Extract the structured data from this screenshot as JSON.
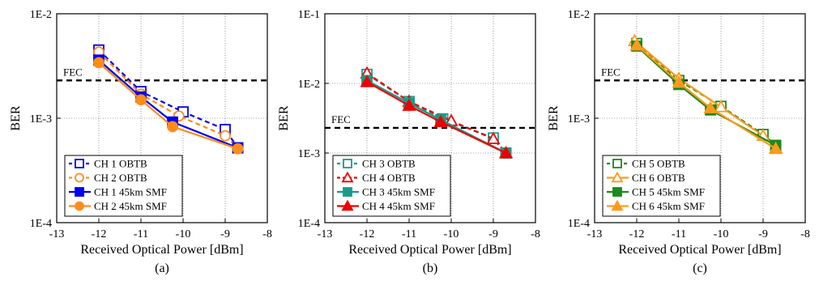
{
  "chart_data": [
    {
      "type": "line",
      "panel_label": "(a)",
      "xlabel": "Received Optical Power [dBm]",
      "ylabel": "BER",
      "xlim": [
        -13,
        -8
      ],
      "ylim": [
        0.0001,
        0.01
      ],
      "yscale": "log",
      "x_ticks": [
        "-13",
        "-12",
        "-11",
        "-10",
        "-9",
        "-8"
      ],
      "y_ticks": [
        "1E-2",
        "1E-3",
        "1E-4"
      ],
      "grid": true,
      "legend_position": "bottom-left",
      "fec": {
        "label": "FEC",
        "value": 0.0023
      },
      "series": [
        {
          "name": "CH 1 OBTB",
          "color": "#0000ee",
          "marker": "square",
          "filled": false,
          "dashed": true,
          "x": [
            -12,
            -11,
            -10,
            -9,
            -8.7
          ],
          "y": [
            0.0045,
            0.0018,
            0.00115,
            0.00078,
            0.00052
          ]
        },
        {
          "name": "CH 2 OBTB",
          "color": "#ff8c1a",
          "marker": "circle",
          "filled": false,
          "dashed": true,
          "x": [
            -12,
            -11,
            -10.1,
            -9,
            -8.7
          ],
          "y": [
            0.0043,
            0.0017,
            0.00105,
            0.00068,
            0.00052
          ]
        },
        {
          "name": "CH 1 45km SMF",
          "color": "#0000ee",
          "marker": "square",
          "filled": true,
          "dashed": false,
          "x": [
            -12,
            -11,
            -10.25,
            -8.7
          ],
          "y": [
            0.0036,
            0.0016,
            0.00092,
            0.00052
          ]
        },
        {
          "name": "CH 2 45km SMF",
          "color": "#ff8c1a",
          "marker": "circle",
          "filled": true,
          "dashed": false,
          "x": [
            -12,
            -11,
            -10.25,
            -8.7
          ],
          "y": [
            0.0034,
            0.0015,
            0.00083,
            0.00051
          ]
        }
      ]
    },
    {
      "type": "line",
      "panel_label": "(b)",
      "xlabel": "Received Optical Power [dBm]",
      "ylabel": "BER",
      "xlim": [
        -13,
        -8
      ],
      "ylim": [
        0.0001,
        0.1
      ],
      "yscale": "log",
      "x_ticks": [
        "-13",
        "-12",
        "-11",
        "-10",
        "-9",
        "-8"
      ],
      "y_ticks": [
        "1E-1",
        "1E-2",
        "1E-3",
        "1E-4"
      ],
      "grid": true,
      "legend_position": "bottom-left",
      "fec": {
        "label": "FEC",
        "value": 0.0023
      },
      "series": [
        {
          "name": "CH 3 OBTB",
          "color": "#1a9a8a",
          "marker": "square",
          "filled": false,
          "dashed": true,
          "x": [
            -12,
            -11,
            -10.2,
            -9,
            -8.7
          ],
          "y": [
            0.0135,
            0.0055,
            0.0031,
            0.00165,
            0.001
          ]
        },
        {
          "name": "CH 4 OBTB",
          "color": "#ee0000",
          "marker": "triangle",
          "filled": false,
          "dashed": true,
          "x": [
            -12,
            -11,
            -10,
            -9,
            -8.7
          ],
          "y": [
            0.014,
            0.0055,
            0.0029,
            0.0016,
            0.001
          ]
        },
        {
          "name": "CH 3 45km SMF",
          "color": "#1a9a8a",
          "marker": "square",
          "filled": true,
          "dashed": false,
          "x": [
            -12,
            -11,
            -10.25,
            -8.7
          ],
          "y": [
            0.011,
            0.0052,
            0.003,
            0.001
          ]
        },
        {
          "name": "CH 4 45km SMF",
          "color": "#ee0000",
          "marker": "triangle",
          "filled": true,
          "dashed": false,
          "x": [
            -12,
            -11,
            -10.25,
            -8.7
          ],
          "y": [
            0.0105,
            0.0048,
            0.0028,
            0.001
          ]
        }
      ]
    },
    {
      "type": "line",
      "panel_label": "(c)",
      "xlabel": "Received Optical Power [dBm]",
      "ylabel": "BER",
      "xlim": [
        -13,
        -8
      ],
      "ylim": [
        0.0001,
        0.01
      ],
      "yscale": "log",
      "x_ticks": [
        "-13",
        "-12",
        "-11",
        "-10",
        "-9",
        "-8"
      ],
      "y_ticks": [
        "1E-2",
        "1E-3",
        "1E-4"
      ],
      "grid": true,
      "legend_position": "bottom-left",
      "fec": {
        "label": "FEC",
        "value": 0.0023
      },
      "series": [
        {
          "name": "CH 5 OBTB",
          "color": "#1a8a1a",
          "marker": "square",
          "filled": false,
          "dashed": true,
          "x": [
            -12,
            -11,
            -10,
            -9,
            -8.7
          ],
          "y": [
            0.0052,
            0.0023,
            0.0013,
            0.0007,
            0.00055
          ]
        },
        {
          "name": "CH 6 OBTB",
          "color": "#ff9a1a",
          "marker": "triangle",
          "filled": false,
          "dashed": false,
          "x": [
            -12.05,
            -11,
            -10,
            -9,
            -8.7
          ],
          "y": [
            0.0055,
            0.0024,
            0.00128,
            0.00068,
            0.00052
          ]
        },
        {
          "name": "CH 5 45km SMF",
          "color": "#1a8a1a",
          "marker": "square",
          "filled": true,
          "dashed": false,
          "x": [
            -12,
            -11,
            -10.25,
            -8.7
          ],
          "y": [
            0.0049,
            0.0021,
            0.0012,
            0.00055
          ]
        },
        {
          "name": "CH 6 45km SMF",
          "color": "#ff9a1a",
          "marker": "triangle",
          "filled": true,
          "dashed": false,
          "x": [
            -12,
            -11,
            -10.25,
            -8.7
          ],
          "y": [
            0.005,
            0.0022,
            0.00125,
            0.00051
          ]
        }
      ]
    }
  ]
}
